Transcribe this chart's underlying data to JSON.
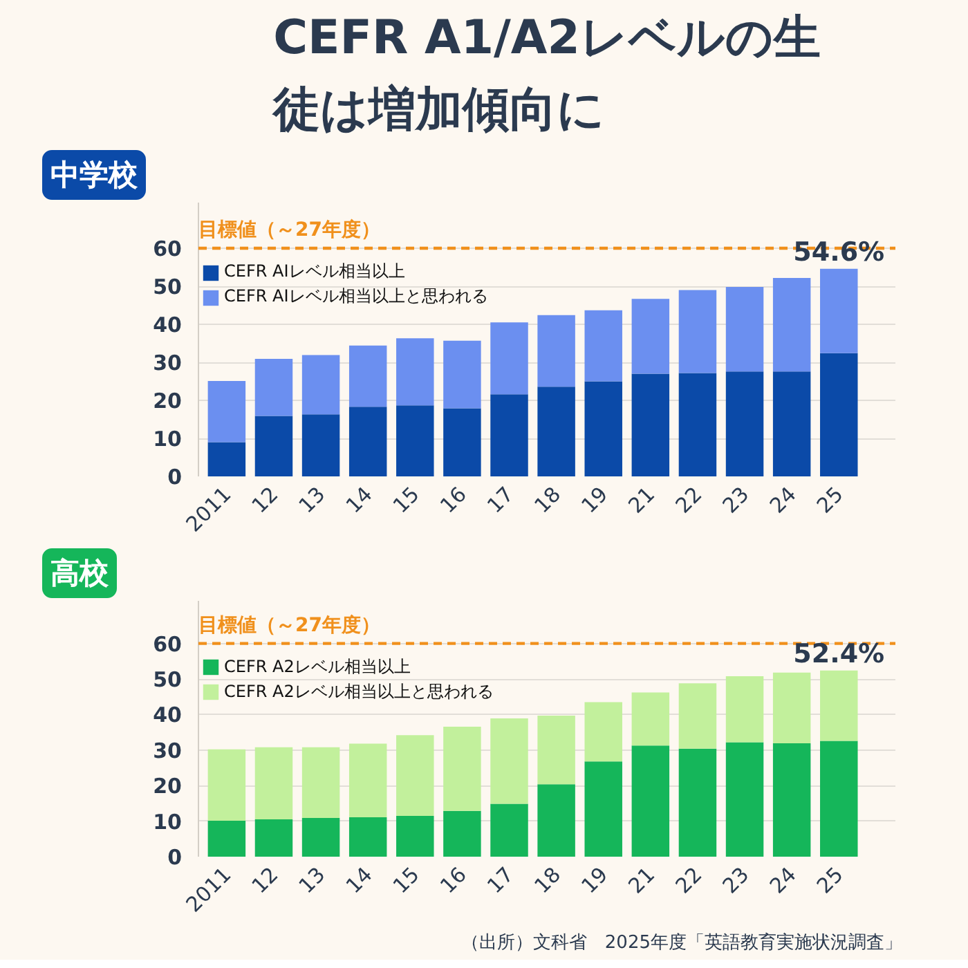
{
  "chart_data": [
    {
      "type": "bar",
      "stacked": true,
      "title": "CEFR A1/A2レベルの生徒は増加傾向に",
      "subtitle": "中学校",
      "categories": [
        "2011",
        "12",
        "13",
        "14",
        "15",
        "16",
        "17",
        "18",
        "19",
        "21",
        "22",
        "23",
        "24",
        "25"
      ],
      "series": [
        {
          "name": "CEFR AIレベル相当以上",
          "color": "#0b4aa8",
          "values": [
            9.0,
            15.9,
            16.3,
            18.3,
            18.7,
            17.9,
            21.6,
            23.6,
            25.0,
            27.0,
            27.2,
            27.6,
            27.6,
            32.4
          ]
        },
        {
          "name": "CEFR AIレベル相当以上と思われる",
          "color": "#6b8ff0",
          "values": [
            16.1,
            15.0,
            15.6,
            16.1,
            17.6,
            17.8,
            18.9,
            18.8,
            18.7,
            19.7,
            21.8,
            22.2,
            24.6,
            22.2
          ]
        }
      ],
      "ylim": [
        0,
        72
      ],
      "yticks": [
        0,
        10,
        20,
        30,
        40,
        50,
        60
      ],
      "grid": "y",
      "legend": "top left",
      "ref_lines": [
        {
          "axis": "y",
          "value": 60,
          "label": "目標値（～27年度）",
          "color": "#f0901c",
          "line_style": "dashed"
        }
      ],
      "totals": [
        null,
        null,
        null,
        null,
        null,
        null,
        null,
        null,
        null,
        null,
        null,
        null,
        null,
        "54.6%"
      ]
    },
    {
      "type": "bar",
      "stacked": true,
      "subtitle": "高校",
      "categories": [
        "2011",
        "12",
        "13",
        "14",
        "15",
        "16",
        "17",
        "18",
        "19",
        "21",
        "22",
        "23",
        "24",
        "25"
      ],
      "series": [
        {
          "name": "CEFR A2レベル相当以上",
          "color": "#15b65a",
          "values": [
            10.1,
            10.5,
            10.9,
            11.1,
            11.5,
            12.9,
            14.9,
            20.4,
            26.8,
            31.3,
            30.4,
            32.2,
            31.9,
            32.6
          ]
        },
        {
          "name": "CEFR A2レベル相当以上と思われる",
          "color": "#c2f09c",
          "values": [
            20.1,
            20.3,
            19.9,
            20.7,
            22.7,
            23.7,
            24.0,
            19.3,
            16.7,
            14.9,
            18.4,
            18.6,
            19.9,
            19.8
          ]
        }
      ],
      "ylim": [
        0,
        72
      ],
      "yticks": [
        0,
        10,
        20,
        30,
        40,
        50,
        60
      ],
      "grid": "y",
      "legend": "top left",
      "ref_lines": [
        {
          "axis": "y",
          "value": 60,
          "label": "目標値（～27年度）",
          "color": "#f0901c",
          "line_style": "dashed"
        }
      ],
      "totals": [
        null,
        null,
        null,
        null,
        null,
        null,
        null,
        null,
        null,
        null,
        null,
        null,
        null,
        "52.4%"
      ],
      "annotations": [
        "（出所）文科省　2025年度「英語教育実施状況調査」"
      ]
    }
  ]
}
